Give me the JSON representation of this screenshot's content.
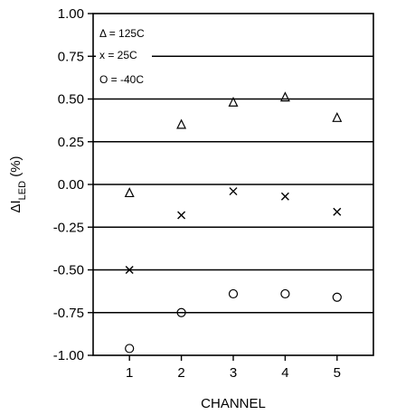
{
  "chart_data": {
    "type": "scatter",
    "title": "",
    "xlabel": "CHANNEL",
    "ylabel": {
      "prefix": "ΔI",
      "subscript": "LED",
      "suffix": " (%)"
    },
    "ylim": [
      -1.0,
      1.0
    ],
    "yticks": [
      1.0,
      0.75,
      0.5,
      0.25,
      0.0,
      -0.25,
      -0.5,
      -0.75,
      -1.0
    ],
    "ytick_labels": [
      "1.00",
      "0.75",
      "0.50",
      "0.25",
      "0.00",
      "-0.25",
      "-0.50",
      "-0.75",
      "-1.00"
    ],
    "xlim": [
      0.3,
      5.7
    ],
    "x": [
      1,
      2,
      3,
      4,
      5
    ],
    "xtick_labels": [
      "1",
      "2",
      "3",
      "4",
      "5"
    ],
    "grid": "horizontal",
    "legend_position": "top-left",
    "series": [
      {
        "name": "Δ = 125C",
        "marker": "Δ",
        "values": [
          -0.05,
          0.35,
          0.48,
          0.51,
          0.39
        ],
        "aux_values": [
          -0.05,
          null,
          null,
          null,
          null
        ]
      },
      {
        "name": "x = 25C",
        "marker": "x",
        "values": [
          -0.5,
          -0.18,
          -0.04,
          -0.07,
          -0.16
        ]
      },
      {
        "name": "O = -40C",
        "marker": "O",
        "values": [
          -0.96,
          -0.75,
          -0.64,
          -0.64,
          -0.66
        ]
      }
    ]
  }
}
